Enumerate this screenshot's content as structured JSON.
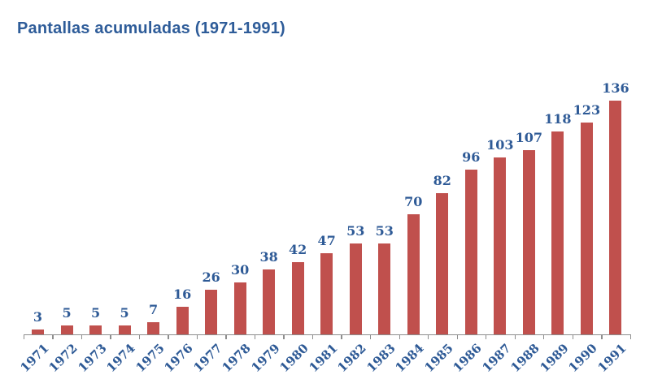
{
  "chart_data": {
    "type": "bar",
    "title": "Pantallas acumuladas (1971-1991)",
    "categories": [
      "1971",
      "1972",
      "1973",
      "1974",
      "1975",
      "1976",
      "1977",
      "1978",
      "1979",
      "1980",
      "1981",
      "1982",
      "1983",
      "1984",
      "1985",
      "1986",
      "1987",
      "1988",
      "1989",
      "1990",
      "1991"
    ],
    "values": [
      3,
      5,
      5,
      5,
      7,
      16,
      26,
      30,
      38,
      42,
      47,
      53,
      53,
      70,
      82,
      96,
      103,
      107,
      118,
      123,
      136
    ],
    "xlabel": "",
    "ylabel": "",
    "ylim": [
      0,
      140
    ],
    "data_labels": true,
    "legend_position": "none",
    "gridlines": false,
    "x_label_rotation_deg": 45,
    "colors": {
      "bar": "#C0504D",
      "title": "#2E5C99",
      "data_label": "#2E5A96",
      "axis_label": "#2E5A96",
      "axis_line": "#8E8E8E"
    }
  }
}
